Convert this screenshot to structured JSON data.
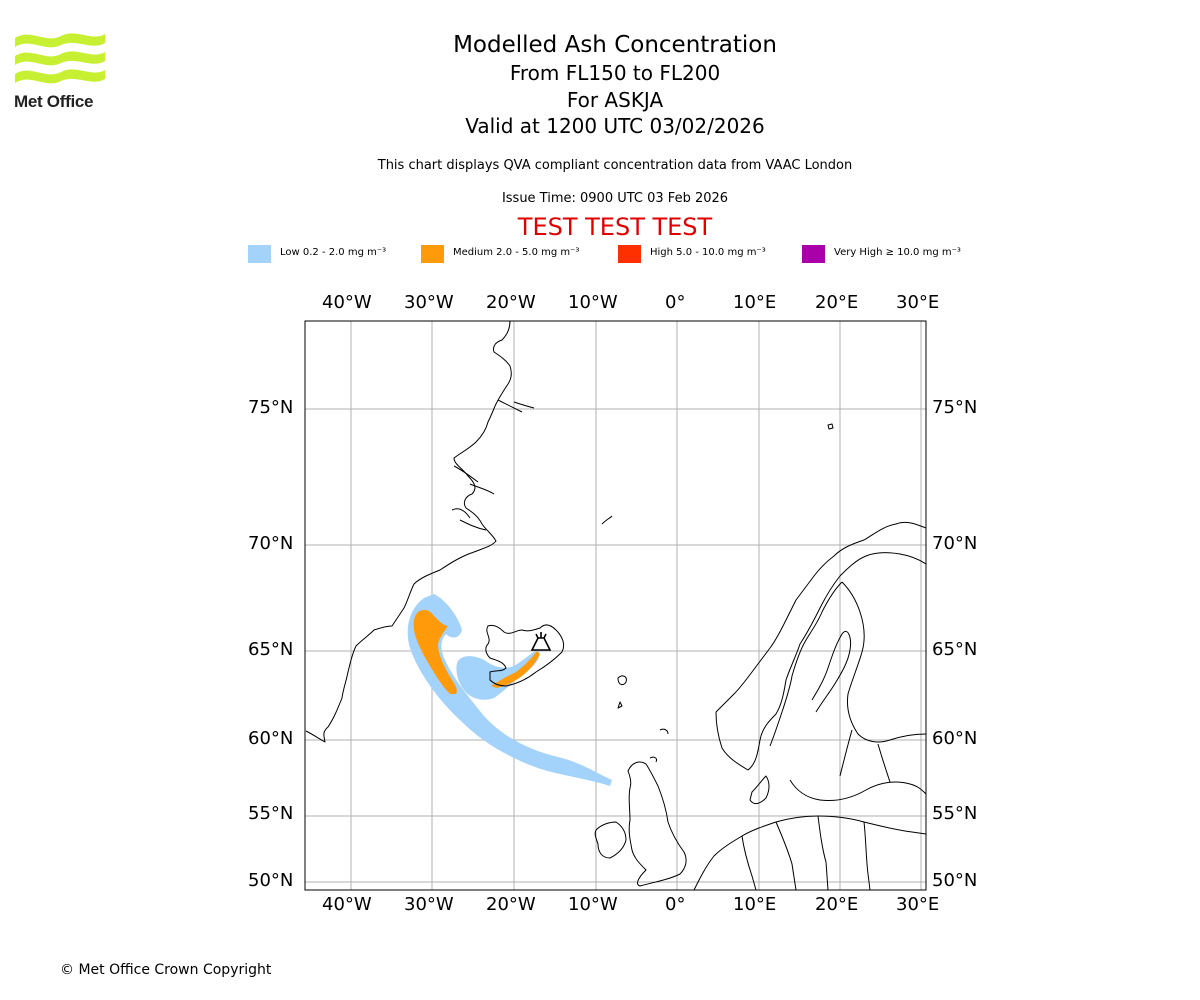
{
  "header": {
    "logo_text": "Met Office",
    "title": "Modelled Ash Concentration",
    "level_range": "From FL150 to FL200",
    "volcano": "For ASKJA",
    "valid_time": "Valid at 1200 UTC 03/02/2026",
    "description": "This chart displays QVA compliant concentration data from VAAC London",
    "issue_time": "Issue Time: 0900 UTC 03 Feb 2026",
    "test_banner": "TEST TEST TEST"
  },
  "legend": [
    {
      "label": "Low 0.2 - 2.0 mg m⁻³",
      "color": "#a3d2fa"
    },
    {
      "label": "Medium 2.0 - 5.0 mg m⁻³",
      "color": "#ff9a0a"
    },
    {
      "label": "High 5.0 - 10.0 mg m⁻³",
      "color": "#ff3000"
    },
    {
      "label": "Very High ≥ 10.0 mg m⁻³",
      "color": "#aa00aa"
    }
  ],
  "map": {
    "longitude_labels": [
      "40°W",
      "30°W",
      "20°W",
      "10°W",
      "0°",
      "10°E",
      "20°E",
      "30°E"
    ],
    "latitude_labels": [
      "75°N",
      "70°N",
      "65°N",
      "60°N",
      "55°N",
      "50°N"
    ],
    "lon_range": [
      -45.5,
      30.5
    ],
    "lat_range": [
      49.7,
      77.5
    ],
    "volcano_marker": {
      "name": "ASKJA",
      "lon": -16.75,
      "lat": 65.03
    }
  },
  "footer": {
    "copyright": "© Met Office Crown Copyright"
  }
}
